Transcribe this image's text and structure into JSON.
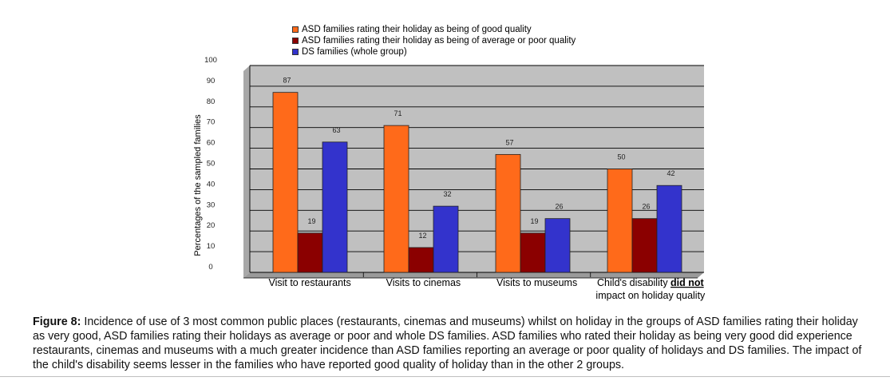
{
  "chart_data": {
    "type": "bar",
    "categories": [
      [
        "Visit to restaurants"
      ],
      [
        "Visits to cinemas"
      ],
      [
        "Visits to museums"
      ],
      [
        "Child's disability ",
        "did not",
        "impact on holiday quality"
      ]
    ],
    "series": [
      {
        "name": "ASD families rating their holiday as being of good quality",
        "values": [
          87,
          71,
          57,
          50
        ],
        "color": "#ff6a1a"
      },
      {
        "name": "ASD families rating their holiday as being of average or poor quality",
        "values": [
          19,
          12,
          19,
          26
        ],
        "color": "#8b0000"
      },
      {
        "name": "DS families (whole group)",
        "values": [
          63,
          32,
          26,
          42
        ],
        "color": "#3333cc"
      }
    ],
    "ylabel": "Percentages of the sampled families",
    "ylim": [
      0,
      100
    ],
    "yticks": [
      0,
      10,
      20,
      30,
      40,
      50,
      60,
      70,
      80,
      90,
      100
    ],
    "grid": true,
    "legend_position": "top",
    "plot_background": "#c0c0c0"
  },
  "caption": {
    "label": "Figure 8:",
    "text": " Incidence of use of 3 most common public places (restaurants, cinemas and museums) whilst on holiday in the groups of ASD families rating their holiday as very good, ASD families rating their holidays as average or poor and whole DS families. ASD families who rated their holiday as being very good did experience restaurants, cinemas and museums with a much greater incidence than ASD families reporting an average or poor quality of holidays and DS families. The impact of the child's disability seems lesser in the families who have reported good quality of holiday than in the other 2 groups."
  }
}
